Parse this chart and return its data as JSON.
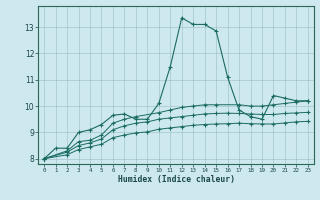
{
  "xlabel": "Humidex (Indice chaleur)",
  "bg_color": "#cde8ee",
  "line_color": "#1a6b62",
  "xlim": [
    -0.5,
    23.5
  ],
  "ylim": [
    7.8,
    13.8
  ],
  "xticks": [
    0,
    1,
    2,
    3,
    4,
    5,
    6,
    7,
    8,
    9,
    10,
    11,
    12,
    13,
    14,
    15,
    16,
    17,
    18,
    19,
    20,
    21,
    22,
    23
  ],
  "yticks": [
    8,
    9,
    10,
    11,
    12,
    13
  ],
  "line1_x": [
    0,
    1,
    2,
    3,
    4,
    5,
    6,
    7,
    8,
    9,
    10,
    11,
    12,
    13,
    14,
    15,
    16,
    17,
    18,
    19,
    20,
    21,
    22,
    23
  ],
  "line1_y": [
    8.0,
    8.4,
    8.4,
    9.0,
    9.1,
    9.3,
    9.65,
    9.7,
    9.5,
    9.5,
    10.1,
    11.5,
    13.35,
    13.1,
    13.1,
    12.85,
    11.1,
    9.85,
    9.6,
    9.5,
    10.4,
    10.3,
    10.2,
    10.2
  ],
  "line2_x": [
    0,
    2,
    3,
    4,
    5,
    6,
    7,
    8,
    10,
    11,
    12,
    13,
    14,
    15,
    17,
    18,
    19,
    20,
    21,
    22,
    23
  ],
  "line2_y": [
    8.0,
    8.3,
    8.65,
    8.7,
    8.9,
    9.35,
    9.5,
    9.6,
    9.75,
    9.85,
    9.95,
    10.0,
    10.05,
    10.05,
    10.05,
    10.0,
    10.0,
    10.05,
    10.1,
    10.15,
    10.2
  ],
  "line3_x": [
    0,
    2,
    3,
    4,
    5,
    6,
    7,
    8,
    9,
    10,
    11,
    12,
    13,
    14,
    15,
    16,
    17,
    18,
    19,
    20,
    21,
    22,
    23
  ],
  "line3_y": [
    8.0,
    8.25,
    8.5,
    8.6,
    8.75,
    9.1,
    9.25,
    9.35,
    9.4,
    9.5,
    9.55,
    9.6,
    9.65,
    9.7,
    9.72,
    9.73,
    9.72,
    9.7,
    9.68,
    9.68,
    9.72,
    9.74,
    9.76
  ],
  "line4_x": [
    0,
    2,
    3,
    4,
    5,
    6,
    7,
    8,
    9,
    10,
    11,
    12,
    13,
    14,
    15,
    16,
    17,
    18,
    19,
    20,
    21,
    22,
    23
  ],
  "line4_y": [
    8.0,
    8.15,
    8.35,
    8.45,
    8.55,
    8.8,
    8.9,
    8.98,
    9.02,
    9.12,
    9.17,
    9.22,
    9.27,
    9.3,
    9.32,
    9.33,
    9.35,
    9.33,
    9.32,
    9.32,
    9.36,
    9.4,
    9.42
  ]
}
